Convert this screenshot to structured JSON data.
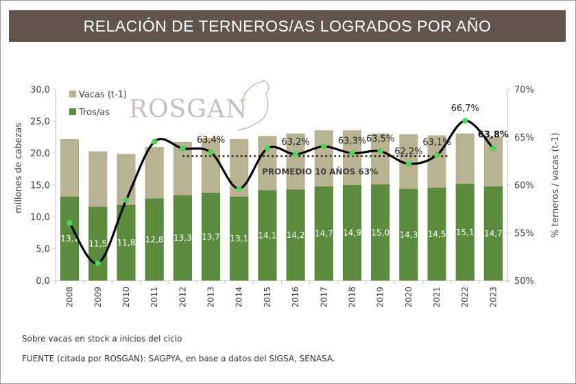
{
  "header": {
    "title": "RELACIÓN DE TERNEROS/AS LOGRADOS POR AÑO"
  },
  "logo": {
    "text": "ROSGAN",
    "icon": "cow-head-icon"
  },
  "notes": {
    "line1": "Sobre vacas en stock a inicios del ciclo",
    "line2": "FUENTE (citada por ROSGAN): SAGPYA, en base a datos del SIGSA, SENASA."
  },
  "colors": {
    "vacas": "#b9b394",
    "terneros": "#5b8c3e",
    "line": "#000000",
    "marker": "#4fd45a",
    "title_bg": "#61554b"
  },
  "chart_data": {
    "type": "bar",
    "title": "RELACIÓN DE TERNEROS/AS LOGRADOS POR AÑO",
    "xlabel": "",
    "ylabel": "millones de cabezas",
    "y2label": "% terneros / vacas (t-1)",
    "ylim": [
      0,
      30
    ],
    "y2lim": [
      50,
      70
    ],
    "yticks": [
      "0,0",
      "5,0",
      "10,0",
      "15,0",
      "20,0",
      "25,0",
      "30,0"
    ],
    "y2ticks": [
      "50%",
      "55%",
      "60%",
      "65%",
      "70%"
    ],
    "categories": [
      "2008",
      "2009",
      "2010",
      "2011",
      "2012",
      "2013",
      "2014",
      "2015",
      "2016",
      "2017",
      "2018",
      "2019",
      "2020",
      "2021",
      "2022",
      "2023"
    ],
    "legend": {
      "position": "top-left",
      "entries": [
        "Vacas (t-1)",
        "Tros/as"
      ]
    },
    "grid": false,
    "series": [
      {
        "name": "Vacas (t-1)",
        "type": "bar",
        "axis": "left",
        "values": [
          22.1,
          20.2,
          19.8,
          20.9,
          21.7,
          22.3,
          22.1,
          22.6,
          23.0,
          23.5,
          23.5,
          23.0,
          22.9,
          22.7,
          23.0,
          22.5
        ]
      },
      {
        "name": "Tros/as",
        "type": "bar",
        "axis": "left",
        "values": [
          13.1,
          11.5,
          11.8,
          12.8,
          13.3,
          13.7,
          13.1,
          14.1,
          14.2,
          14.7,
          14.9,
          15.0,
          14.3,
          14.5,
          15.1,
          14.7
        ],
        "labels": [
          "13,1",
          "11,5",
          "11,8",
          "12,8",
          "13,3",
          "13,7",
          "13,1",
          "14,1",
          "14,2",
          "14,7",
          "14,9",
          "15,0",
          "14,3",
          "14,5",
          "15,1",
          "14,7"
        ]
      },
      {
        "name": "% terneros / vacas (t-1)",
        "type": "line",
        "axis": "right",
        "values": [
          56.0,
          51.8,
          58.4,
          64.5,
          63.8,
          63.4,
          59.6,
          63.8,
          63.2,
          64.0,
          63.3,
          63.5,
          62.2,
          63.1,
          66.7,
          63.8
        ],
        "labels": [
          "",
          "",
          "",
          "",
          "",
          "63,4%",
          "",
          "",
          "63,2%",
          "",
          "63,3%",
          "63,5%",
          "62,2%",
          "63,1%",
          "66,7%",
          "63,8%"
        ]
      }
    ],
    "annotations": [
      {
        "text": "PROMEDIO 10 AÑOS 63%",
        "type": "reference-line",
        "axis": "right",
        "value": 63,
        "from": "2012",
        "to": "2021"
      }
    ]
  }
}
